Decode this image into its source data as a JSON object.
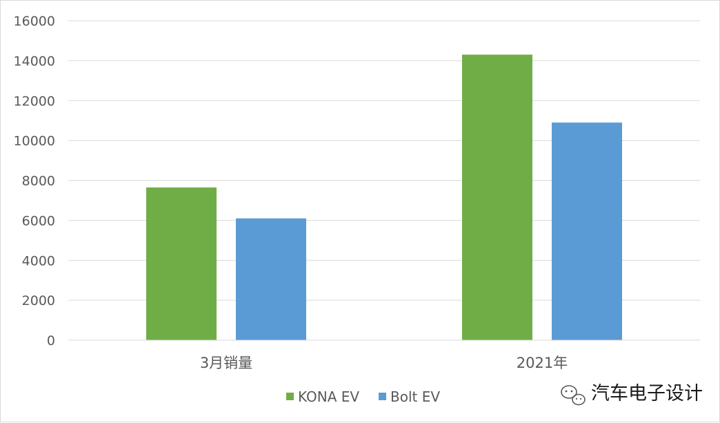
{
  "chart_data": {
    "type": "bar",
    "title": "",
    "xlabel": "",
    "ylabel": "",
    "ylim": [
      0,
      16000
    ],
    "y_ticks": [
      0,
      2000,
      4000,
      6000,
      8000,
      10000,
      12000,
      14000,
      16000
    ],
    "grid": true,
    "legend_position": "bottom",
    "categories": [
      "3月销量",
      "2021年"
    ],
    "series": [
      {
        "name": "KONA EV",
        "color": "#70ad47",
        "values": [
          7650,
          14300
        ]
      },
      {
        "name": "Bolt EV",
        "color": "#5b9bd5",
        "values": [
          6100,
          10900
        ]
      }
    ]
  },
  "watermark": {
    "text": "汽车电子设计",
    "icon": "wechat-logo-icon"
  }
}
